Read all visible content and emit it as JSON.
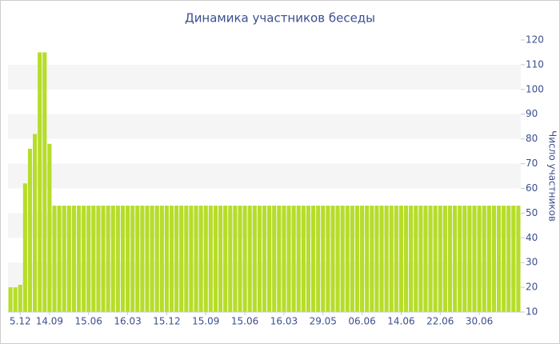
{
  "chart_data": {
    "type": "bar",
    "title": "Динамика участников беседы",
    "y_label": "Число участников",
    "categories": [
      null,
      null,
      "5.12",
      null,
      null,
      null,
      null,
      null,
      "14.09",
      null,
      null,
      null,
      null,
      null,
      null,
      null,
      "15.06",
      null,
      null,
      null,
      null,
      null,
      null,
      null,
      "16.03",
      null,
      null,
      null,
      null,
      null,
      null,
      null,
      "15.12",
      null,
      null,
      null,
      null,
      null,
      null,
      null,
      "15.09",
      null,
      null,
      null,
      null,
      null,
      null,
      null,
      "15.06",
      null,
      null,
      null,
      null,
      null,
      null,
      null,
      "16.03",
      null,
      null,
      null,
      null,
      null,
      null,
      null,
      "29.05",
      null,
      null,
      null,
      null,
      null,
      null,
      null,
      "06.06",
      null,
      null,
      null,
      null,
      null,
      null,
      null,
      "14.06",
      null,
      null,
      null,
      null,
      null,
      null,
      null,
      "22.06",
      null,
      null,
      null,
      null,
      null,
      null,
      null,
      "30.06",
      null,
      null,
      null,
      null,
      null,
      null,
      null,
      null
    ],
    "values": [
      20,
      20,
      21,
      62,
      76,
      82,
      115,
      115,
      78,
      53,
      53,
      53,
      53,
      53,
      53,
      53,
      53,
      53,
      53,
      53,
      53,
      53,
      53,
      53,
      53,
      53,
      53,
      53,
      53,
      53,
      53,
      53,
      53,
      53,
      53,
      53,
      53,
      53,
      53,
      53,
      53,
      53,
      53,
      53,
      53,
      53,
      53,
      53,
      53,
      53,
      53,
      53,
      53,
      53,
      53,
      53,
      53,
      53,
      53,
      53,
      53,
      53,
      53,
      53,
      53,
      53,
      53,
      53,
      53,
      53,
      53,
      53,
      53,
      53,
      53,
      53,
      53,
      53,
      53,
      53,
      53,
      53,
      53,
      53,
      53,
      53,
      53,
      53,
      53,
      53,
      53,
      53,
      53,
      53,
      53,
      53,
      53,
      53,
      53,
      53,
      53,
      53,
      53,
      53,
      53
    ],
    "color": "#b6dd2a",
    "ylim": [
      10,
      120
    ],
    "yticks": [
      10,
      20,
      30,
      40,
      50,
      60,
      70,
      80,
      90,
      100,
      110,
      120
    ],
    "y_axis_side": "right",
    "alternate_bands": true
  }
}
